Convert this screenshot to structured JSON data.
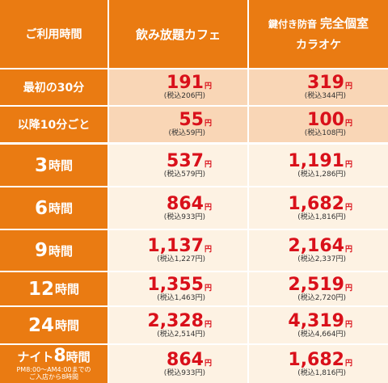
{
  "header": {
    "time": "ご利用時間",
    "cafe": "飲み放題カフェ",
    "karaoke_line1_small": "鍵付き防音",
    "karaoke_line1_big": "完全個室",
    "karaoke_line2": "カラオケ"
  },
  "yen": "円",
  "rows": [
    {
      "label": "最初の30分",
      "cafe": {
        "price": "191",
        "tax": "(税込206円)"
      },
      "karaoke": {
        "price": "319",
        "tax": "(税込344円)"
      }
    },
    {
      "label": "以降10分ごと",
      "cafe": {
        "price": "55",
        "tax": "(税込59円)"
      },
      "karaoke": {
        "price": "100",
        "tax": "(税込108円)"
      }
    },
    {
      "label_num": "3",
      "label_unit": "時間",
      "cafe": {
        "price": "537",
        "tax": "(税込579円)"
      },
      "karaoke": {
        "price": "1,191",
        "tax": "(税込1,286円)"
      }
    },
    {
      "label_num": "6",
      "label_unit": "時間",
      "cafe": {
        "price": "864",
        "tax": "(税込933円)"
      },
      "karaoke": {
        "price": "1,682",
        "tax": "(税込1,816円)"
      }
    },
    {
      "label_num": "9",
      "label_unit": "時間",
      "cafe": {
        "price": "1,137",
        "tax": "(税込1,227円)"
      },
      "karaoke": {
        "price": "2,164",
        "tax": "(税込2,337円)"
      }
    },
    {
      "label_num": "12",
      "label_unit": "時間",
      "cafe": {
        "price": "1,355",
        "tax": "(税込1,463円)"
      },
      "karaoke": {
        "price": "2,519",
        "tax": "(税込2,720円)"
      }
    },
    {
      "label_num": "24",
      "label_unit": "時間",
      "cafe": {
        "price": "2,328",
        "tax": "(税込2,514円)"
      },
      "karaoke": {
        "price": "4,319",
        "tax": "(税込4,664円)"
      }
    },
    {
      "label_pre": "ナイト",
      "label_num": "8",
      "label_unit": "時間",
      "note1": "PM8:00～AM4:00までの",
      "note2": "ご入店から8時間",
      "cafe": {
        "price": "864",
        "tax": "(税込933円)"
      },
      "karaoke": {
        "price": "1,682",
        "tax": "(税込1,816円)"
      }
    }
  ],
  "colors": {
    "header_orange": "#ea7b12",
    "peach": "#f9d6b6",
    "cream": "#fdf2e3",
    "price_red": "#d9101a"
  }
}
